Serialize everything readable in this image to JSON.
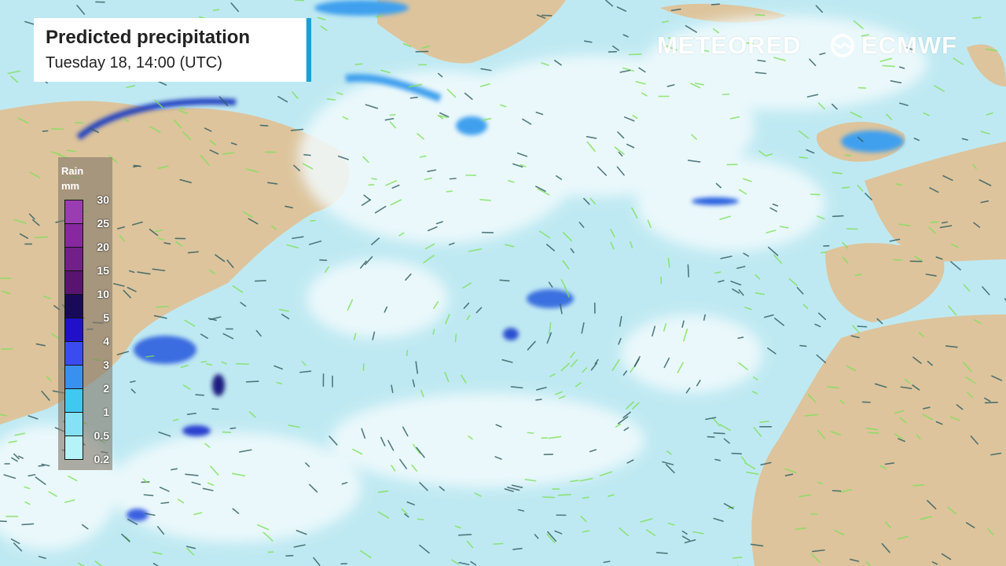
{
  "header": {
    "title": "Predicted precipitation",
    "subtitle": "Tuesday 18, 14:00 (UTC)"
  },
  "branding": {
    "meteored": "METEORED",
    "ecmwf": "ECMWF"
  },
  "legend": {
    "title_line1": "Rain",
    "title_line2": "mm",
    "labels": [
      "30",
      "25",
      "20",
      "15",
      "10",
      "5",
      "4",
      "3",
      "2",
      "1",
      "0.5",
      "0.2"
    ],
    "colors": [
      "#9a3db0",
      "#87289e",
      "#702088",
      "#581470",
      "#180a58",
      "#2010c8",
      "#3a4cf0",
      "#3a90ee",
      "#40c8f0",
      "#84e2f4",
      "#b4f4f8"
    ]
  },
  "map_colors": {
    "ocean": "#bfe9f2",
    "land": "#ddc49c",
    "cloud": "#eef9fb",
    "rain": "#3a90ee",
    "wind": "#7ee05a"
  }
}
